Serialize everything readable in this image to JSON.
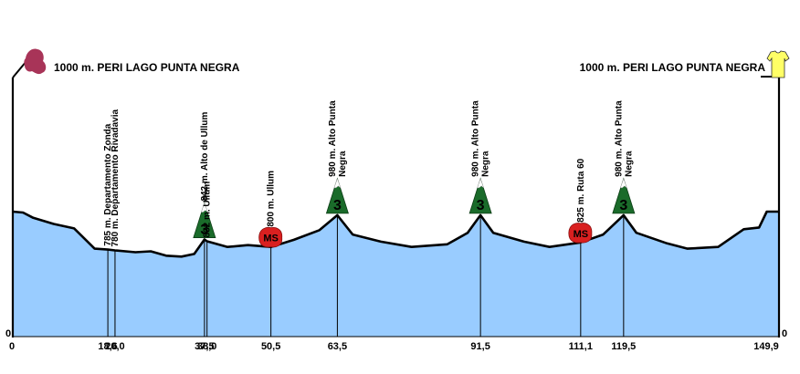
{
  "chart_data": {
    "type": "area",
    "start_label": "1000 m. PERI LAGO PUNTA NEGRA",
    "finish_label": "1000 m. PERI LAGO PUNTA NEGRA",
    "y_axis_left_label": "0",
    "y_axis_right_label": "0",
    "fill_color": "#99ccff",
    "outline_color": "#000000",
    "start_icon": "start-marker-icon",
    "finish_icon": "finish-jersey-icon",
    "start_icon_color": "#a83458",
    "finish_icon_color": "#ffff66",
    "x_range": [
      0,
      149.9
    ],
    "profile": [
      {
        "km": 0,
        "alt": 1000
      },
      {
        "km": 2.0,
        "alt": 995
      },
      {
        "km": 4.0,
        "alt": 965
      },
      {
        "km": 8.0,
        "alt": 930
      },
      {
        "km": 12.0,
        "alt": 905
      },
      {
        "km": 16.0,
        "alt": 790
      },
      {
        "km": 18.6,
        "alt": 785
      },
      {
        "km": 20.0,
        "alt": 780
      },
      {
        "km": 24.0,
        "alt": 770
      },
      {
        "km": 27.0,
        "alt": 775
      },
      {
        "km": 30.0,
        "alt": 750
      },
      {
        "km": 33.0,
        "alt": 745
      },
      {
        "km": 35.5,
        "alt": 760
      },
      {
        "km": 37.5,
        "alt": 842
      },
      {
        "km": 38.0,
        "alt": 832
      },
      {
        "km": 42.0,
        "alt": 800
      },
      {
        "km": 46.0,
        "alt": 810
      },
      {
        "km": 50.5,
        "alt": 800
      },
      {
        "km": 55.0,
        "alt": 840
      },
      {
        "km": 60.0,
        "alt": 895
      },
      {
        "km": 63.5,
        "alt": 980
      },
      {
        "km": 66.5,
        "alt": 870
      },
      {
        "km": 72.0,
        "alt": 830
      },
      {
        "km": 78.0,
        "alt": 800
      },
      {
        "km": 85.0,
        "alt": 815
      },
      {
        "km": 89.0,
        "alt": 880
      },
      {
        "km": 91.5,
        "alt": 980
      },
      {
        "km": 94.0,
        "alt": 880
      },
      {
        "km": 100.0,
        "alt": 830
      },
      {
        "km": 105.0,
        "alt": 800
      },
      {
        "km": 111.1,
        "alt": 825
      },
      {
        "km": 115.5,
        "alt": 870
      },
      {
        "km": 119.5,
        "alt": 980
      },
      {
        "km": 122.0,
        "alt": 880
      },
      {
        "km": 128.0,
        "alt": 820
      },
      {
        "km": 132.0,
        "alt": 790
      },
      {
        "km": 138.0,
        "alt": 800
      },
      {
        "km": 143.0,
        "alt": 900
      },
      {
        "km": 146.0,
        "alt": 910
      },
      {
        "km": 147.5,
        "alt": 1000
      },
      {
        "km": 149.9,
        "alt": 1000
      }
    ],
    "x_ticks": [
      {
        "km": 0,
        "label": "0"
      },
      {
        "km": 18.6,
        "label": "18,6"
      },
      {
        "km": 20.0,
        "label": "20,0"
      },
      {
        "km": 37.5,
        "label": "37,5"
      },
      {
        "km": 38.0,
        "label": "38,0"
      },
      {
        "km": 50.5,
        "label": "50,5"
      },
      {
        "km": 63.5,
        "label": "63,5"
      },
      {
        "km": 91.5,
        "label": "91,5"
      },
      {
        "km": 111.1,
        "label": "111,1"
      },
      {
        "km": 119.5,
        "label": "119,5"
      },
      {
        "km": 149.9,
        "label": "149,9"
      }
    ],
    "waypoints": [
      {
        "km": 18.6,
        "alt": 785,
        "lines": [
          "785 m. Departamento Zonda"
        ],
        "icon": null
      },
      {
        "km": 20.0,
        "alt": 780,
        "lines": [
          "780 m. Departamento Rivadavia"
        ],
        "icon": null
      },
      {
        "km": 37.5,
        "alt": 842,
        "lines": [
          "842 m. Alto de Ullum"
        ],
        "icon": "climb-category-3-icon",
        "icon_text": "3"
      },
      {
        "km": 38.0,
        "alt": 832,
        "lines": [
          "832 m. Ullum"
        ],
        "icon": null
      },
      {
        "km": 50.5,
        "alt": 800,
        "lines": [
          "800 m. Ullum"
        ],
        "icon": "intermediate-sprint-icon",
        "icon_text": "MS"
      },
      {
        "km": 63.5,
        "alt": 980,
        "lines": [
          "980 m. Alto Punta",
          "Negra"
        ],
        "icon": "climb-category-3-icon",
        "icon_text": "3"
      },
      {
        "km": 91.5,
        "alt": 980,
        "lines": [
          "980 m. Alto Punta",
          "Negra"
        ],
        "icon": "climb-category-3-icon",
        "icon_text": "3"
      },
      {
        "km": 111.1,
        "alt": 825,
        "lines": [
          "825 m. Ruta 60"
        ],
        "icon": "intermediate-sprint-icon",
        "icon_text": "MS"
      },
      {
        "km": 119.5,
        "alt": 980,
        "lines": [
          "980 m. Alto Punta",
          "Negra"
        ],
        "icon": "climb-category-3-icon",
        "icon_text": "3"
      }
    ]
  }
}
